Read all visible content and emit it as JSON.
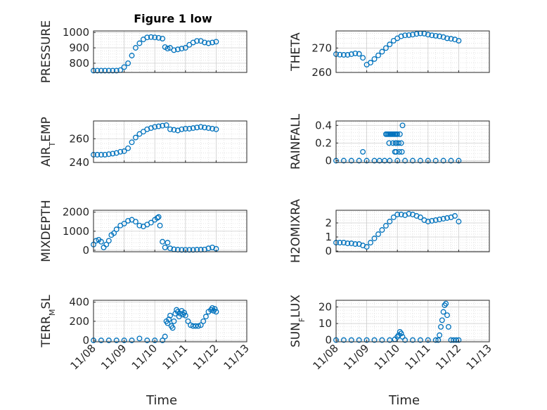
{
  "figure": {
    "title": "Figure 1 low"
  },
  "style": {
    "marker_color": "#0072BD",
    "axis_color": "#262626",
    "grid_color": "#d9d9d9"
  },
  "chart_data": [
    {
      "type": "scatter",
      "title": "Figure 1 low",
      "ylabel": "PRESSURE",
      "xlabel": "",
      "xlim": [
        "11/08",
        "11/13"
      ],
      "xticks": [
        "11/08",
        "11/09",
        "11/10",
        "11/11",
        "11/12",
        "11/13"
      ],
      "ylim": [
        740,
        1010
      ],
      "yticks": [
        800,
        900,
        1000
      ],
      "grid": true,
      "x": [
        "11/08 00:00",
        "11/08 03:00",
        "11/08 06:00",
        "11/08 09:00",
        "11/08 12:00",
        "11/08 15:00",
        "11/08 18:00",
        "11/08 21:00",
        "11/09 00:00",
        "11/09 03:00",
        "11/09 06:00",
        "11/09 09:00",
        "11/09 12:00",
        "11/09 15:00",
        "11/09 18:00",
        "11/09 21:00",
        "11/10 00:00",
        "11/10 03:00",
        "11/10 06:00",
        "11/10 08:00",
        "11/10 10:00",
        "11/10 12:00",
        "11/10 15:00",
        "11/10 18:00",
        "11/10 21:00",
        "11/11 00:00",
        "11/11 03:00",
        "11/11 06:00",
        "11/11 09:00",
        "11/11 12:00",
        "11/11 15:00",
        "11/11 18:00",
        "11/11 21:00",
        "11/12 00:00"
      ],
      "y": [
        752,
        752,
        752,
        752,
        752,
        752,
        752,
        755,
        775,
        800,
        850,
        900,
        930,
        955,
        968,
        970,
        968,
        965,
        960,
        905,
        895,
        900,
        885,
        890,
        895,
        900,
        920,
        935,
        945,
        945,
        935,
        930,
        935,
        940
      ]
    },
    {
      "type": "scatter",
      "ylabel": "THETA",
      "xlabel": "",
      "xlim": [
        "11/08",
        "11/13"
      ],
      "xticks": [
        "11/08",
        "11/09",
        "11/10",
        "11/11",
        "11/12",
        "11/13"
      ],
      "ylim": [
        260,
        277
      ],
      "yticks": [
        260,
        270
      ],
      "grid": true,
      "x": [
        "11/08 00:00",
        "11/08 03:00",
        "11/08 06:00",
        "11/08 09:00",
        "11/08 12:00",
        "11/08 15:00",
        "11/08 18:00",
        "11/08 21:00",
        "11/09 00:00",
        "11/09 03:00",
        "11/09 06:00",
        "11/09 09:00",
        "11/09 12:00",
        "11/09 15:00",
        "11/09 18:00",
        "11/09 21:00",
        "11/10 00:00",
        "11/10 03:00",
        "11/10 06:00",
        "11/10 09:00",
        "11/10 12:00",
        "11/10 15:00",
        "11/10 18:00",
        "11/10 21:00",
        "11/11 00:00",
        "11/11 03:00",
        "11/11 06:00",
        "11/11 09:00",
        "11/11 12:00",
        "11/11 15:00",
        "11/11 18:00",
        "11/11 21:00",
        "11/12 00:00"
      ],
      "y": [
        267.5,
        267.3,
        267.2,
        267.2,
        267.5,
        267.8,
        267.6,
        266,
        263.2,
        264,
        265.5,
        267,
        268.5,
        270,
        271.5,
        273,
        274,
        274.8,
        275.2,
        275.3,
        275.5,
        275.8,
        276,
        275.9,
        275.5,
        275.2,
        275,
        274.8,
        274.5,
        274,
        273.8,
        273.5,
        273
      ]
    },
    {
      "type": "scatter",
      "ylabel": "AIR_TEMP",
      "ylabel_parts": [
        "AIR",
        "T",
        "EMP"
      ],
      "xlabel": "",
      "xlim": [
        "11/08",
        "11/13"
      ],
      "xticks": [
        "11/08",
        "11/09",
        "11/10",
        "11/11",
        "11/12",
        "11/13"
      ],
      "ylim": [
        240,
        275
      ],
      "yticks": [
        240,
        260
      ],
      "grid": true,
      "x": [
        "11/08 00:00",
        "11/08 03:00",
        "11/08 06:00",
        "11/08 09:00",
        "11/08 12:00",
        "11/08 15:00",
        "11/08 18:00",
        "11/08 21:00",
        "11/09 00:00",
        "11/09 03:00",
        "11/09 06:00",
        "11/09 09:00",
        "11/09 12:00",
        "11/09 15:00",
        "11/09 18:00",
        "11/09 21:00",
        "11/10 00:00",
        "11/10 03:00",
        "11/10 06:00",
        "11/10 09:00",
        "11/10 12:00",
        "11/10 15:00",
        "11/10 18:00",
        "11/10 21:00",
        "11/11 00:00",
        "11/11 03:00",
        "11/11 06:00",
        "11/11 09:00",
        "11/11 12:00",
        "11/11 15:00",
        "11/11 18:00",
        "11/11 21:00",
        "11/12 00:00"
      ],
      "y": [
        246.5,
        246.5,
        246.5,
        246.6,
        247,
        247.5,
        248,
        249,
        249.5,
        252,
        257,
        261,
        264,
        266,
        268,
        269,
        270,
        270.5,
        271,
        271.5,
        268,
        267.5,
        267,
        268,
        268.5,
        268.5,
        269,
        269.5,
        270,
        269.5,
        269,
        268.5,
        268
      ]
    },
    {
      "type": "scatter",
      "ylabel": "RAINFALL",
      "xlabel": "",
      "xlim": [
        "11/08",
        "11/13"
      ],
      "xticks": [
        "11/08",
        "11/09",
        "11/10",
        "11/11",
        "11/12",
        "11/13"
      ],
      "ylim": [
        -0.02,
        0.45
      ],
      "yticks": [
        0,
        0.2,
        0.4
      ],
      "grid": true,
      "x": [
        "11/08 00:00",
        "11/08 06:00",
        "11/08 12:00",
        "11/08 18:00",
        "11/09 00:00",
        "11/09 06:00",
        "11/09 10:00",
        "11/09 14:00",
        "11/09 18:00",
        "11/10 00:00",
        "11/10 06:00",
        "11/10 12:00",
        "11/10 18:00",
        "11/11 00:00",
        "11/11 06:00",
        "11/11 12:00",
        "11/11 18:00",
        "11/12 00:00",
        "11/08 21:00",
        "11/09 15:00",
        "11/09 16:00",
        "11/09 17:00",
        "11/09 18:00",
        "11/09 19:00",
        "11/09 20:00",
        "11/09 21:00",
        "11/09 22:00",
        "11/09 23:00",
        "11/10 00:00",
        "11/10 02:00",
        "11/10 04:00",
        "11/09 17:30",
        "11/09 20:30",
        "11/09 22:30",
        "11/09 23:30",
        "11/10 01:00",
        "11/10 03:00",
        "11/09 22:00",
        "11/09 23:00",
        "11/10 01:30",
        "11/10 03:30"
      ],
      "y": [
        0,
        0,
        0,
        0,
        0,
        0,
        0,
        0,
        0,
        0,
        0,
        0,
        0,
        0,
        0,
        0,
        0,
        0,
        0.1,
        0.3,
        0.3,
        0.3,
        0.3,
        0.3,
        0.3,
        0.3,
        0.3,
        0.3,
        0.3,
        0.3,
        0.4,
        0.2,
        0.2,
        0.2,
        0.2,
        0.2,
        0.2,
        0.1,
        0.1,
        0.1,
        0.1
      ]
    },
    {
      "type": "scatter",
      "ylabel": "MIXDEPTH",
      "xlabel": "",
      "xlim": [
        "11/08",
        "11/13"
      ],
      "xticks": [
        "11/08",
        "11/09",
        "11/10",
        "11/11",
        "11/12",
        "11/13"
      ],
      "ylim": [
        -80,
        2100
      ],
      "yticks": [
        0,
        1000,
        2000
      ],
      "grid": true,
      "x": [
        "11/08 00:00",
        "11/08 02:00",
        "11/08 04:00",
        "11/08 06:00",
        "11/08 08:00",
        "11/08 10:00",
        "11/08 12:00",
        "11/08 14:00",
        "11/08 16:00",
        "11/08 18:00",
        "11/08 21:00",
        "11/09 00:00",
        "11/09 03:00",
        "11/09 06:00",
        "11/09 09:00",
        "11/09 12:00",
        "11/09 15:00",
        "11/09 18:00",
        "11/09 21:00",
        "11/10 00:00",
        "11/10 02:00",
        "11/10 03:00",
        "11/10 04:00",
        "11/10 06:00",
        "11/10 08:00",
        "11/10 10:00",
        "11/10 12:00",
        "11/10 15:00",
        "11/10 18:00",
        "11/10 21:00",
        "11/11 00:00",
        "11/11 03:00",
        "11/11 06:00",
        "11/11 09:00",
        "11/11 12:00",
        "11/11 15:00",
        "11/11 18:00",
        "11/11 21:00",
        "11/12 00:00"
      ],
      "y": [
        300,
        500,
        550,
        450,
        150,
        300,
        500,
        800,
        900,
        1100,
        1300,
        1400,
        1550,
        1600,
        1500,
        1300,
        1250,
        1350,
        1450,
        1600,
        1700,
        1750,
        1300,
        450,
        150,
        400,
        100,
        50,
        30,
        20,
        20,
        20,
        20,
        30,
        30,
        40,
        100,
        150,
        80
      ]
    },
    {
      "type": "scatter",
      "ylabel": "H2OMIXRA",
      "xlabel": "",
      "xlim": [
        "11/08",
        "11/13"
      ],
      "xticks": [
        "11/08",
        "11/09",
        "11/10",
        "11/11",
        "11/12",
        "11/13"
      ],
      "ylim": [
        -0.05,
        2.9
      ],
      "yticks": [
        0,
        1,
        2
      ],
      "grid": true,
      "x": [
        "11/08 00:00",
        "11/08 03:00",
        "11/08 06:00",
        "11/08 09:00",
        "11/08 12:00",
        "11/08 15:00",
        "11/08 18:00",
        "11/08 21:00",
        "11/09 00:00",
        "11/09 03:00",
        "11/09 06:00",
        "11/09 09:00",
        "11/09 12:00",
        "11/09 15:00",
        "11/09 18:00",
        "11/09 21:00",
        "11/10 00:00",
        "11/10 03:00",
        "11/10 06:00",
        "11/10 09:00",
        "11/10 12:00",
        "11/10 15:00",
        "11/10 18:00",
        "11/10 21:00",
        "11/11 00:00",
        "11/11 03:00",
        "11/11 06:00",
        "11/11 09:00",
        "11/11 12:00",
        "11/11 15:00",
        "11/11 18:00",
        "11/11 21:00",
        "11/12 00:00"
      ],
      "y": [
        0.6,
        0.6,
        0.6,
        0.55,
        0.55,
        0.5,
        0.5,
        0.4,
        0.3,
        0.6,
        0.9,
        1.2,
        1.5,
        1.8,
        2.1,
        2.4,
        2.6,
        2.6,
        2.55,
        2.65,
        2.6,
        2.5,
        2.4,
        2.2,
        2.1,
        2.15,
        2.2,
        2.25,
        2.3,
        2.35,
        2.4,
        2.5,
        2.1
      ]
    },
    {
      "type": "scatter",
      "ylabel": "TERR_MSL",
      "ylabel_parts": [
        "TERR",
        "M",
        "SL"
      ],
      "xlabel": "Time",
      "xlim": [
        "11/08",
        "11/13"
      ],
      "xticks": [
        "11/08",
        "11/09",
        "11/10",
        "11/11",
        "11/12",
        "11/13"
      ],
      "ylim": [
        -15,
        420
      ],
      "yticks": [
        0,
        200,
        400
      ],
      "grid": true,
      "x": [
        "11/08 00:00",
        "11/08 06:00",
        "11/08 12:00",
        "11/08 18:00",
        "11/09 00:00",
        "11/09 06:00",
        "11/09 12:00",
        "11/09 18:00",
        "11/10 00:00",
        "11/10 06:00",
        "11/10 08:00",
        "11/10 09:00",
        "11/10 10:00",
        "11/10 11:00",
        "11/10 12:00",
        "11/10 13:00",
        "11/10 14:00",
        "11/10 15:00",
        "11/10 16:00",
        "11/10 17:00",
        "11/10 18:00",
        "11/10 19:00",
        "11/10 20:00",
        "11/10 21:00",
        "11/10 22:00",
        "11/10 23:00",
        "11/11 00:00",
        "11/11 02:00",
        "11/11 04:00",
        "11/11 06:00",
        "11/11 08:00",
        "11/11 10:00",
        "11/11 12:00",
        "11/11 14:00",
        "11/11 16:00",
        "11/11 18:00",
        "11/11 20:00",
        "11/11 21:00",
        "11/11 22:00",
        "11/11 23:00",
        "11/12 00:00"
      ],
      "y": [
        0,
        0,
        0,
        0,
        0,
        0,
        20,
        0,
        0,
        0,
        40,
        200,
        180,
        220,
        260,
        150,
        130,
        200,
        280,
        320,
        300,
        250,
        280,
        310,
        270,
        290,
        260,
        200,
        160,
        150,
        150,
        150,
        160,
        200,
        250,
        300,
        320,
        340,
        310,
        330,
        300
      ]
    },
    {
      "type": "scatter",
      "ylabel": "SUN_FLUX",
      "ylabel_parts": [
        "SUN",
        "F",
        "LUX"
      ],
      "xlabel": "Time",
      "xlim": [
        "11/08",
        "11/13"
      ],
      "xticks": [
        "11/08",
        "11/09",
        "11/10",
        "11/11",
        "11/12",
        "11/13"
      ],
      "ylim": [
        -1,
        24
      ],
      "yticks": [
        0,
        10,
        20
      ],
      "grid": true,
      "x": [
        "11/08 00:00",
        "11/08 06:00",
        "11/08 12:00",
        "11/08 18:00",
        "11/09 00:00",
        "11/09 06:00",
        "11/09 12:00",
        "11/09 18:00",
        "11/09 22:00",
        "11/10 00:00",
        "11/10 01:00",
        "11/10 02:00",
        "11/10 03:00",
        "11/10 04:00",
        "11/10 06:00",
        "11/10 12:00",
        "11/10 18:00",
        "11/11 00:00",
        "11/11 06:00",
        "11/11 08:00",
        "11/11 09:00",
        "11/11 10:00",
        "11/11 11:00",
        "11/11 12:00",
        "11/11 13:00",
        "11/11 14:00",
        "11/11 15:00",
        "11/11 16:00",
        "11/11 18:00",
        "11/11 20:00",
        "11/11 22:00",
        "11/12 00:00"
      ],
      "y": [
        0,
        0,
        0,
        0,
        0,
        0,
        0,
        0,
        0.5,
        2,
        3,
        5,
        4,
        2,
        0,
        0,
        0,
        0,
        0,
        0,
        3,
        8,
        12,
        17,
        21,
        22,
        15,
        8,
        0,
        0,
        0,
        0
      ]
    }
  ]
}
